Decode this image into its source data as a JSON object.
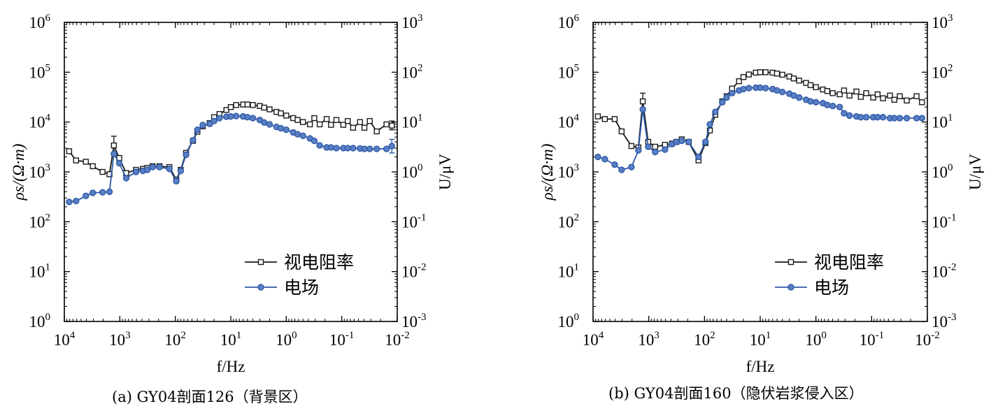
{
  "chart_data": [
    {
      "type": "line",
      "caption": "(a) GY04剖面126（背景区）",
      "xlabel": "f/Hz",
      "ylabel_left": "ρs/(Ω·m)",
      "ylabel_right": "U/μV",
      "x_scale": "log",
      "x_reversed": true,
      "xlim": [
        10000,
        0.01
      ],
      "ylim_left": [
        1,
        1000000
      ],
      "ylim_right": [
        0.001,
        1000
      ],
      "y_scale": "log",
      "x_ticks": [
        {
          "value": 10000,
          "base": "10",
          "exp": "4"
        },
        {
          "value": 1000,
          "base": "10",
          "exp": "3"
        },
        {
          "value": 100,
          "base": "10",
          "exp": "2"
        },
        {
          "value": 10,
          "base": "10",
          "exp": "1"
        },
        {
          "value": 1,
          "base": "10",
          "exp": "0"
        },
        {
          "value": 0.1,
          "base": "10",
          "exp": "-1"
        },
        {
          "value": 0.01,
          "base": "10",
          "exp": "-2"
        }
      ],
      "y_ticks_left": [
        {
          "value": 1,
          "base": "10",
          "exp": "0"
        },
        {
          "value": 10,
          "base": "10",
          "exp": "1"
        },
        {
          "value": 100,
          "base": "10",
          "exp": "2"
        },
        {
          "value": 1000,
          "base": "10",
          "exp": "3"
        },
        {
          "value": 10000,
          "base": "10",
          "exp": "4"
        },
        {
          "value": 100000,
          "base": "10",
          "exp": "5"
        },
        {
          "value": 1000000,
          "base": "10",
          "exp": "6"
        }
      ],
      "y_ticks_right": [
        {
          "value": 0.001,
          "base": "10",
          "exp": "-3"
        },
        {
          "value": 0.01,
          "base": "10",
          "exp": "-2"
        },
        {
          "value": 0.1,
          "base": "10",
          "exp": "-1"
        },
        {
          "value": 1,
          "base": "10",
          "exp": "0"
        },
        {
          "value": 10,
          "base": "10",
          "exp": "1"
        },
        {
          "value": 100,
          "base": "10",
          "exp": "2"
        },
        {
          "value": 1000,
          "base": "10",
          "exp": "3"
        }
      ],
      "legend_position": "lower-right",
      "series": [
        {
          "name": "视电阻率",
          "axis": "left",
          "color": "#1a1a1a",
          "marker": "square",
          "x": [
            8192,
            6144,
            4096,
            3072,
            2048,
            1536,
            1280,
            1024,
            768,
            512,
            384,
            320,
            256,
            192,
            128,
            96,
            80,
            64,
            48,
            40,
            32,
            24,
            20,
            16,
            12,
            10,
            8,
            6,
            5,
            4,
            3,
            2.5,
            2,
            1.5,
            1.25,
            1,
            0.75,
            0.625,
            0.5,
            0.375,
            0.3125,
            0.25,
            0.1875,
            0.15625,
            0.125,
            0.09375,
            0.078125,
            0.0625,
            0.046875,
            0.0390625,
            0.03125,
            0.0234375,
            0.015625,
            0.0125
          ],
          "y": [
            2600,
            1700,
            1600,
            1300,
            1000,
            900,
            3400,
            1900,
            950,
            1100,
            1150,
            1200,
            1300,
            1300,
            1250,
            700,
            1100,
            2400,
            4200,
            6400,
            8200,
            9500,
            12500,
            14500,
            17500,
            20000,
            22000,
            22500,
            22500,
            22000,
            21000,
            19500,
            18000,
            16000,
            15000,
            13500,
            12000,
            11000,
            10000,
            9000,
            12000,
            9000,
            11500,
            8800,
            11000,
            8800,
            10500,
            7700,
            10000,
            7700,
            10500,
            6500,
            9000,
            8500
          ],
          "error": [
            {
              "x": 1280,
              "low": 2200,
              "high": 5200
            },
            {
              "x": 0.0125,
              "low": 7000,
              "high": 10500
            }
          ]
        },
        {
          "name": "电场",
          "axis": "left",
          "color": "#2e5aa8",
          "marker": "circle",
          "x": [
            8192,
            6144,
            4096,
            3072,
            2048,
            1536,
            1280,
            1024,
            768,
            512,
            384,
            320,
            256,
            192,
            128,
            96,
            80,
            64,
            48,
            40,
            32,
            24,
            20,
            16,
            12,
            10,
            8,
            6,
            5,
            4,
            3,
            2.5,
            2,
            1.5,
            1.25,
            1,
            0.75,
            0.625,
            0.5,
            0.375,
            0.3125,
            0.25,
            0.1875,
            0.15625,
            0.125,
            0.09375,
            0.078125,
            0.0625,
            0.046875,
            0.0390625,
            0.03125,
            0.0234375,
            0.015625,
            0.0125
          ],
          "y": [
            250,
            260,
            330,
            380,
            390,
            400,
            2300,
            1500,
            750,
            1000,
            1050,
            1100,
            1250,
            1250,
            1150,
            650,
            1050,
            2200,
            4300,
            7000,
            8700,
            9200,
            10500,
            12000,
            12800,
            13000,
            13200,
            13000,
            12500,
            12000,
            11000,
            9800,
            9000,
            8000,
            7500,
            7000,
            6200,
            5700,
            5300,
            4700,
            4200,
            3400,
            3100,
            3100,
            3000,
            3000,
            3000,
            3000,
            2950,
            2900,
            2900,
            2900,
            2900,
            3300
          ],
          "error": [
            {
              "x": 0.0125,
              "low": 2400,
              "high": 4500
            }
          ]
        }
      ]
    },
    {
      "type": "line",
      "caption": "(b) GY04剖面160（隐伏岩浆侵入区）",
      "xlabel": "f/Hz",
      "ylabel_left": "ρs/(Ω·m)",
      "ylabel_right": "U/μV",
      "x_scale": "log",
      "x_reversed": true,
      "xlim": [
        10000,
        0.01
      ],
      "ylim_left": [
        1,
        1000000
      ],
      "ylim_right": [
        0.001,
        1000
      ],
      "y_scale": "log",
      "x_ticks": [
        {
          "value": 10000,
          "base": "10",
          "exp": "4"
        },
        {
          "value": 1000,
          "base": "10",
          "exp": "3"
        },
        {
          "value": 100,
          "base": "10",
          "exp": "2"
        },
        {
          "value": 10,
          "base": "10",
          "exp": "1"
        },
        {
          "value": 1,
          "base": "10",
          "exp": "0"
        },
        {
          "value": 0.1,
          "base": "10",
          "exp": "-1"
        },
        {
          "value": 0.01,
          "base": "10",
          "exp": "-2"
        }
      ],
      "y_ticks_left": [
        {
          "value": 1,
          "base": "10",
          "exp": "0"
        },
        {
          "value": 10,
          "base": "10",
          "exp": "1"
        },
        {
          "value": 100,
          "base": "10",
          "exp": "2"
        },
        {
          "value": 1000,
          "base": "10",
          "exp": "3"
        },
        {
          "value": 10000,
          "base": "10",
          "exp": "4"
        },
        {
          "value": 100000,
          "base": "10",
          "exp": "5"
        },
        {
          "value": 1000000,
          "base": "10",
          "exp": "6"
        }
      ],
      "y_ticks_right": [
        {
          "value": 0.001,
          "base": "10",
          "exp": "-3"
        },
        {
          "value": 0.01,
          "base": "10",
          "exp": "-2"
        },
        {
          "value": 0.1,
          "base": "10",
          "exp": "-1"
        },
        {
          "value": 1,
          "base": "10",
          "exp": "0"
        },
        {
          "value": 10,
          "base": "10",
          "exp": "1"
        },
        {
          "value": 100,
          "base": "10",
          "exp": "2"
        },
        {
          "value": 1000,
          "base": "10",
          "exp": "3"
        }
      ],
      "legend_position": "lower-right",
      "series": [
        {
          "name": "视电阻率",
          "axis": "left",
          "color": "#1a1a1a",
          "marker": "square",
          "x": [
            8192,
            6144,
            4096,
            3072,
            2048,
            1536,
            1280,
            1024,
            768,
            512,
            384,
            320,
            256,
            192,
            128,
            96,
            80,
            64,
            48,
            40,
            32,
            24,
            20,
            16,
            12,
            10,
            8,
            6,
            5,
            4,
            3,
            2.5,
            2,
            1.5,
            1.25,
            1,
            0.75,
            0.625,
            0.5,
            0.375,
            0.3125,
            0.25,
            0.1875,
            0.15625,
            0.125,
            0.09375,
            0.078125,
            0.0625,
            0.046875,
            0.0390625,
            0.03125,
            0.0234375,
            0.015625,
            0.0125
          ],
          "y": [
            13000,
            11500,
            11500,
            6500,
            3300,
            3100,
            26000,
            4000,
            3200,
            3500,
            3700,
            4000,
            4500,
            4000,
            1700,
            3800,
            6800,
            14000,
            26000,
            33000,
            47000,
            66000,
            80000,
            90000,
            98000,
            100000,
            100000,
            98000,
            94000,
            89000,
            82000,
            75000,
            68000,
            61000,
            55000,
            50000,
            45000,
            42000,
            38000,
            36000,
            43000,
            34000,
            41000,
            32000,
            38000,
            31000,
            36000,
            30000,
            34000,
            28000,
            33000,
            27000,
            33000,
            25000
          ],
          "error": [
            {
              "x": 1280,
              "low": 17000,
              "high": 38000
            }
          ]
        },
        {
          "name": "电场",
          "axis": "left",
          "color": "#2e5aa8",
          "marker": "circle",
          "x": [
            8192,
            6144,
            4096,
            3072,
            2048,
            1536,
            1280,
            1024,
            768,
            512,
            384,
            320,
            256,
            192,
            128,
            96,
            80,
            64,
            48,
            40,
            32,
            24,
            20,
            16,
            12,
            10,
            8,
            6,
            5,
            4,
            3,
            2.5,
            2,
            1.5,
            1.25,
            1,
            0.75,
            0.625,
            0.5,
            0.375,
            0.3125,
            0.25,
            0.1875,
            0.15625,
            0.125,
            0.09375,
            0.078125,
            0.0625,
            0.046875,
            0.0390625,
            0.03125,
            0.0234375,
            0.015625,
            0.0125
          ],
          "y": [
            2000,
            1800,
            1400,
            1100,
            1250,
            2700,
            18000,
            3200,
            2500,
            2800,
            3600,
            4000,
            4200,
            4000,
            2000,
            4000,
            9000,
            16000,
            25000,
            31000,
            38000,
            43000,
            46000,
            48000,
            49000,
            49000,
            48000,
            46000,
            43000,
            40000,
            37000,
            34000,
            31000,
            28000,
            26000,
            25000,
            24000,
            22000,
            21000,
            20000,
            15000,
            13500,
            13000,
            12500,
            12500,
            12500,
            12500,
            12500,
            12000,
            12000,
            12000,
            12000,
            12000,
            12000
          ],
          "error": []
        }
      ]
    }
  ]
}
